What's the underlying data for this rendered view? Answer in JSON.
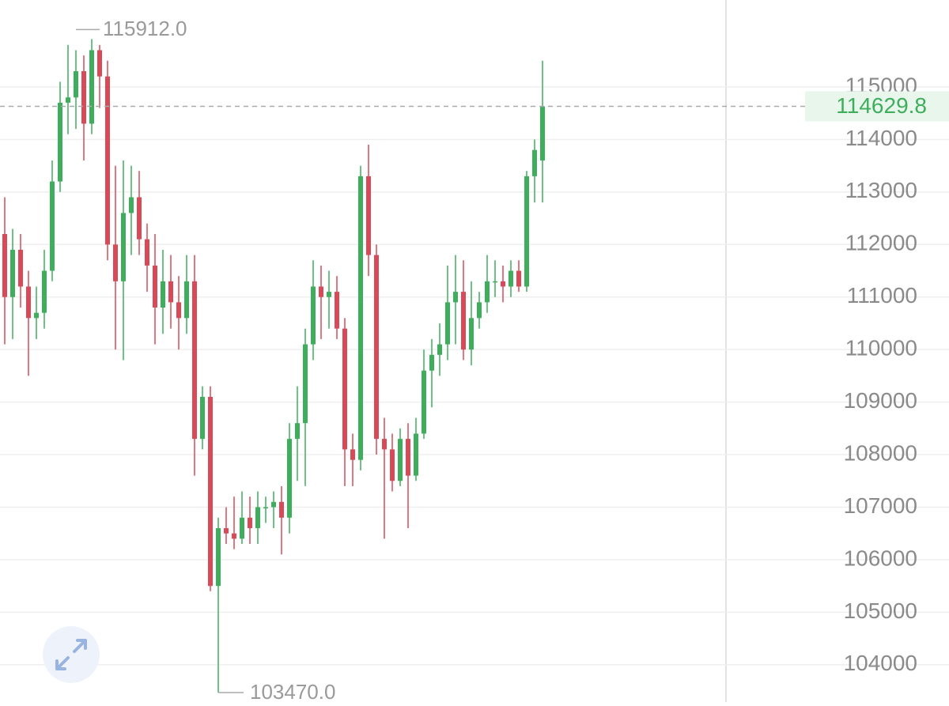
{
  "chart_data": {
    "type": "candlestick",
    "open": [
      112200,
      111000,
      111900,
      111200,
      110600,
      110700,
      111500,
      113200,
      114700,
      114800,
      115300,
      114300,
      115700,
      115200,
      112000,
      111300,
      112600,
      112900,
      112100,
      111600,
      110800,
      111300,
      110900,
      110600,
      111300,
      108300,
      109100,
      105500,
      106600,
      106500,
      106400,
      106800,
      106600,
      107000,
      107000,
      107100,
      106800,
      108300,
      108600,
      110100,
      111200,
      111000,
      111100,
      110400,
      108100,
      107900,
      113300,
      111800,
      108300,
      108100,
      107500,
      108300,
      107600,
      108400,
      109600,
      109900,
      110100,
      110900,
      111100,
      110000,
      110600,
      110900,
      111300,
      111300,
      111200,
      111500,
      111200,
      113300,
      113600
    ],
    "high": [
      112900,
      112300,
      112200,
      111500,
      111200,
      111900,
      113600,
      115100,
      115800,
      115700,
      115600,
      115912,
      115800,
      115500,
      113500,
      113600,
      113500,
      113400,
      112400,
      112200,
      111900,
      111800,
      111400,
      111800,
      111800,
      109300,
      109300,
      106800,
      107000,
      107200,
      107300,
      107200,
      107300,
      107200,
      107300,
      107400,
      108600,
      109300,
      110400,
      111700,
      111600,
      111500,
      111400,
      110600,
      108400,
      113500,
      113900,
      112000,
      108700,
      108400,
      108500,
      108600,
      108700,
      110000,
      110200,
      110500,
      111600,
      111800,
      111700,
      111300,
      111100,
      111800,
      111700,
      111600,
      111700,
      111700,
      113400,
      114000,
      115500
    ],
    "low": [
      110100,
      110200,
      110800,
      109500,
      110200,
      110400,
      111300,
      113000,
      114100,
      114200,
      113600,
      114100,
      114600,
      111700,
      110000,
      109800,
      111800,
      111800,
      111100,
      110100,
      110300,
      110400,
      110000,
      110300,
      107600,
      108100,
      105400,
      103470,
      106300,
      106200,
      106300,
      106300,
      106300,
      106700,
      106600,
      106100,
      106500,
      107500,
      107400,
      109800,
      110200,
      110400,
      110200,
      107400,
      107400,
      107700,
      111400,
      108000,
      106400,
      107300,
      107400,
      106600,
      107500,
      108300,
      108900,
      109500,
      109800,
      110100,
      109800,
      109700,
      110400,
      110700,
      111000,
      110900,
      111000,
      111100,
      111100,
      112800,
      112800
    ],
    "close": [
      111000,
      111900,
      111200,
      110600,
      110700,
      111500,
      113200,
      114700,
      114800,
      115300,
      114300,
      115700,
      115200,
      112000,
      111300,
      112600,
      112900,
      112100,
      111600,
      110800,
      111300,
      110900,
      110600,
      111300,
      108300,
      109100,
      105500,
      106600,
      106500,
      106400,
      106800,
      106600,
      107000,
      107000,
      107100,
      106800,
      108300,
      108600,
      110100,
      111200,
      111000,
      111100,
      110400,
      108100,
      107900,
      113300,
      111800,
      108300,
      108100,
      107500,
      108300,
      107600,
      108400,
      109600,
      109900,
      110100,
      110900,
      111100,
      110000,
      110600,
      110900,
      111300,
      111300,
      111200,
      111500,
      111200,
      113300,
      113800,
      114629.8
    ],
    "up_color": "#3fae5c",
    "down_color": "#d84a58",
    "ylim": [
      103290,
      116655
    ],
    "yticks": [
      104000,
      105000,
      106000,
      107000,
      108000,
      109000,
      110000,
      111000,
      112000,
      113000,
      114000,
      115000
    ],
    "grid": true,
    "max_label": "115912.0",
    "min_label": "103470.0",
    "last_price_label": "114629.8"
  }
}
